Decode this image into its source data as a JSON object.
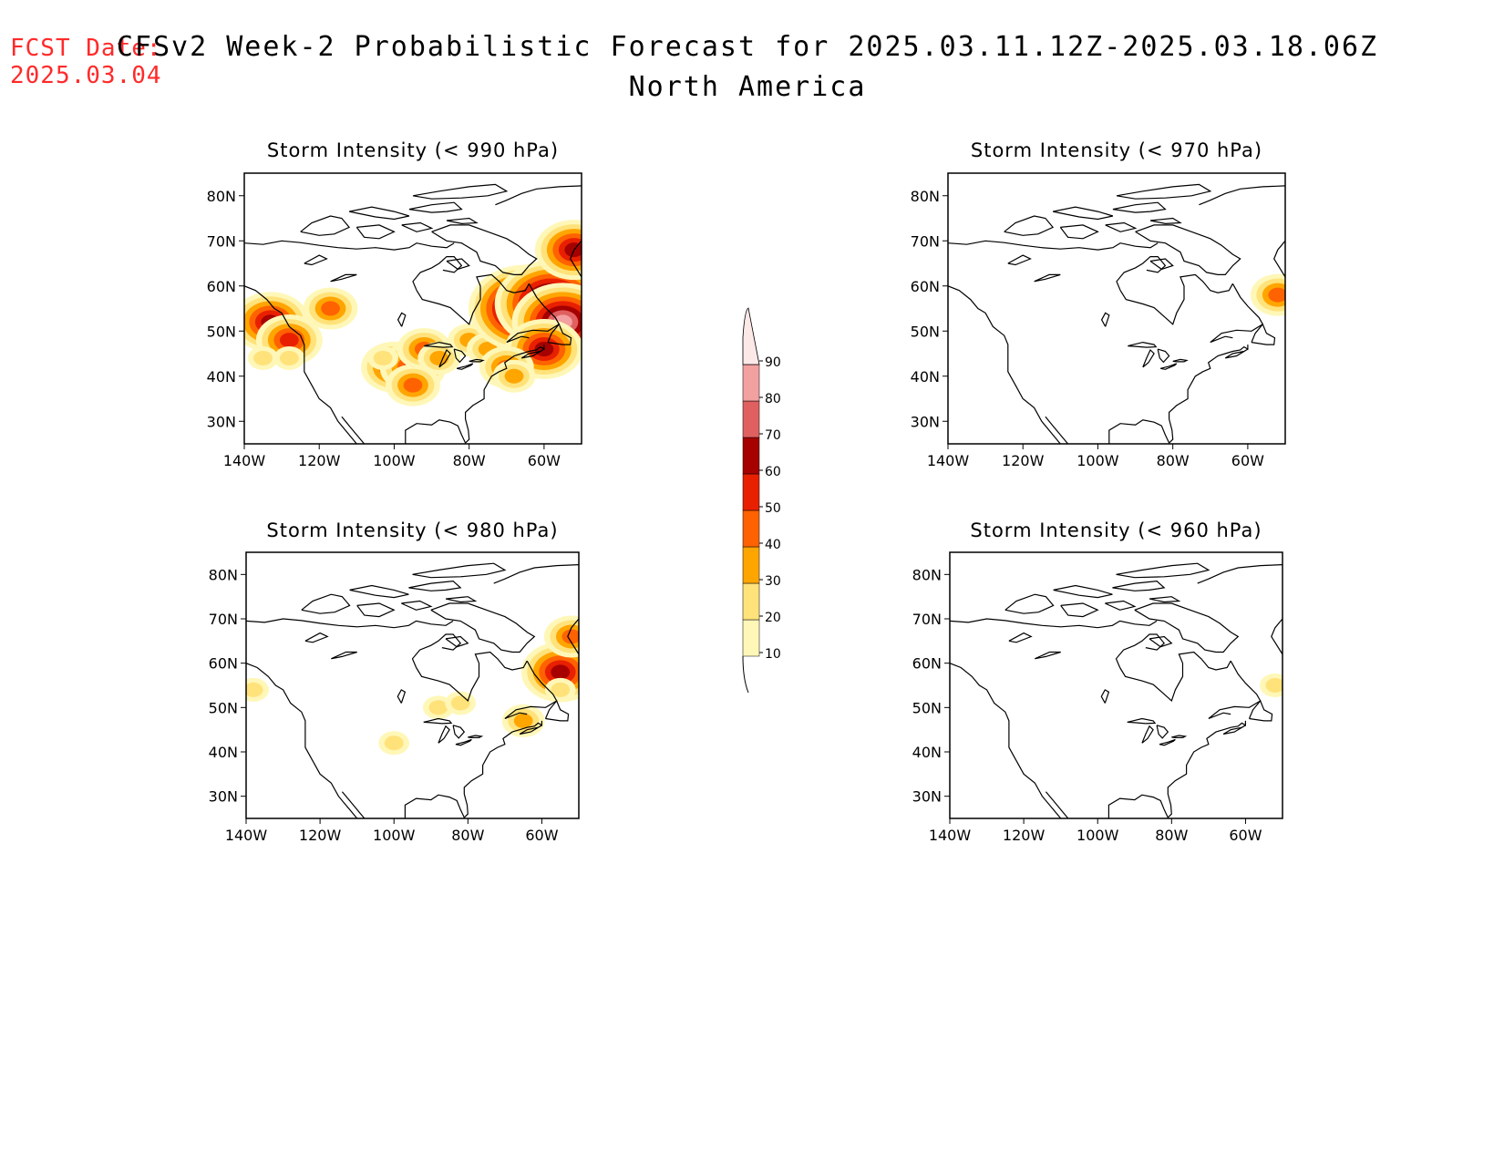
{
  "header": {
    "fcst_label": "FCST Date:",
    "fcst_date": "2025.03.04",
    "title": "CFSv2 Week-2 Probabilistic Forecast for 2025.03.11.12Z-2025.03.18.06Z",
    "region": "North America"
  },
  "axes": {
    "lat_ticks": [
      "80N",
      "70N",
      "60N",
      "50N",
      "40N",
      "30N"
    ],
    "lon_ticks": [
      "140W",
      "120W",
      "100W",
      "80W",
      "60W"
    ]
  },
  "panels": [
    {
      "title": "Storm Intensity (< 990 hPa)"
    },
    {
      "title": "Storm Intensity (< 970 hPa)"
    },
    {
      "title": "Storm Intensity (< 980 hPa)"
    },
    {
      "title": "Storm Intensity (< 960 hPa)"
    }
  ],
  "legend": {
    "levels": [
      "10",
      "20",
      "30",
      "40",
      "50",
      "60",
      "70",
      "80",
      "90"
    ],
    "colors": [
      "#fff7b8",
      "#ffe27a",
      "#ffa500",
      "#ff6200",
      "#e82000",
      "#a60000",
      "#e06060",
      "#f2a0a0",
      "#fde8e8"
    ]
  },
  "chart_data": {
    "type": "heatmap",
    "lon_range": [
      -140,
      -50
    ],
    "lat_range": [
      25,
      85
    ],
    "panels": [
      {
        "threshold_hpa": 990,
        "blobs": [
          {
            "lon": -133,
            "lat": 52,
            "p": 60
          },
          {
            "lon": -128,
            "lat": 48,
            "p": 50
          },
          {
            "lon": -135,
            "lat": 44,
            "p": 20
          },
          {
            "lon": -128,
            "lat": 44,
            "p": 20
          },
          {
            "lon": -117,
            "lat": 55,
            "p": 40
          },
          {
            "lon": -100,
            "lat": 42,
            "p": 50
          },
          {
            "lon": -95,
            "lat": 42,
            "p": 50
          },
          {
            "lon": -92,
            "lat": 46,
            "p": 40
          },
          {
            "lon": -95,
            "lat": 38,
            "p": 40
          },
          {
            "lon": -88,
            "lat": 44,
            "p": 30
          },
          {
            "lon": -80,
            "lat": 48,
            "p": 30
          },
          {
            "lon": -75,
            "lat": 46,
            "p": 30
          },
          {
            "lon": -65,
            "lat": 55,
            "p": 90
          },
          {
            "lon": -58,
            "lat": 56,
            "p": 90
          },
          {
            "lon": -55,
            "lat": 52,
            "p": 80
          },
          {
            "lon": -60,
            "lat": 46,
            "p": 60
          },
          {
            "lon": -70,
            "lat": 42,
            "p": 40
          },
          {
            "lon": -68,
            "lat": 40,
            "p": 30
          },
          {
            "lon": -52,
            "lat": 68,
            "p": 60
          },
          {
            "lon": -103,
            "lat": 44,
            "p": 20
          }
        ]
      },
      {
        "threshold_hpa": 970,
        "blobs": [
          {
            "lon": -52,
            "lat": 58,
            "p": 40
          }
        ]
      },
      {
        "threshold_hpa": 980,
        "blobs": [
          {
            "lon": -138,
            "lat": 54,
            "p": 20
          },
          {
            "lon": -100,
            "lat": 42,
            "p": 20
          },
          {
            "lon": -88,
            "lat": 50,
            "p": 20
          },
          {
            "lon": -82,
            "lat": 51,
            "p": 20
          },
          {
            "lon": -65,
            "lat": 47,
            "p": 30
          },
          {
            "lon": -55,
            "lat": 58,
            "p": 60
          },
          {
            "lon": -52,
            "lat": 66,
            "p": 40
          },
          {
            "lon": -55,
            "lat": 54,
            "p": 20
          }
        ]
      },
      {
        "threshold_hpa": 960,
        "blobs": [
          {
            "lon": -52,
            "lat": 55,
            "p": 20
          }
        ]
      }
    ]
  }
}
